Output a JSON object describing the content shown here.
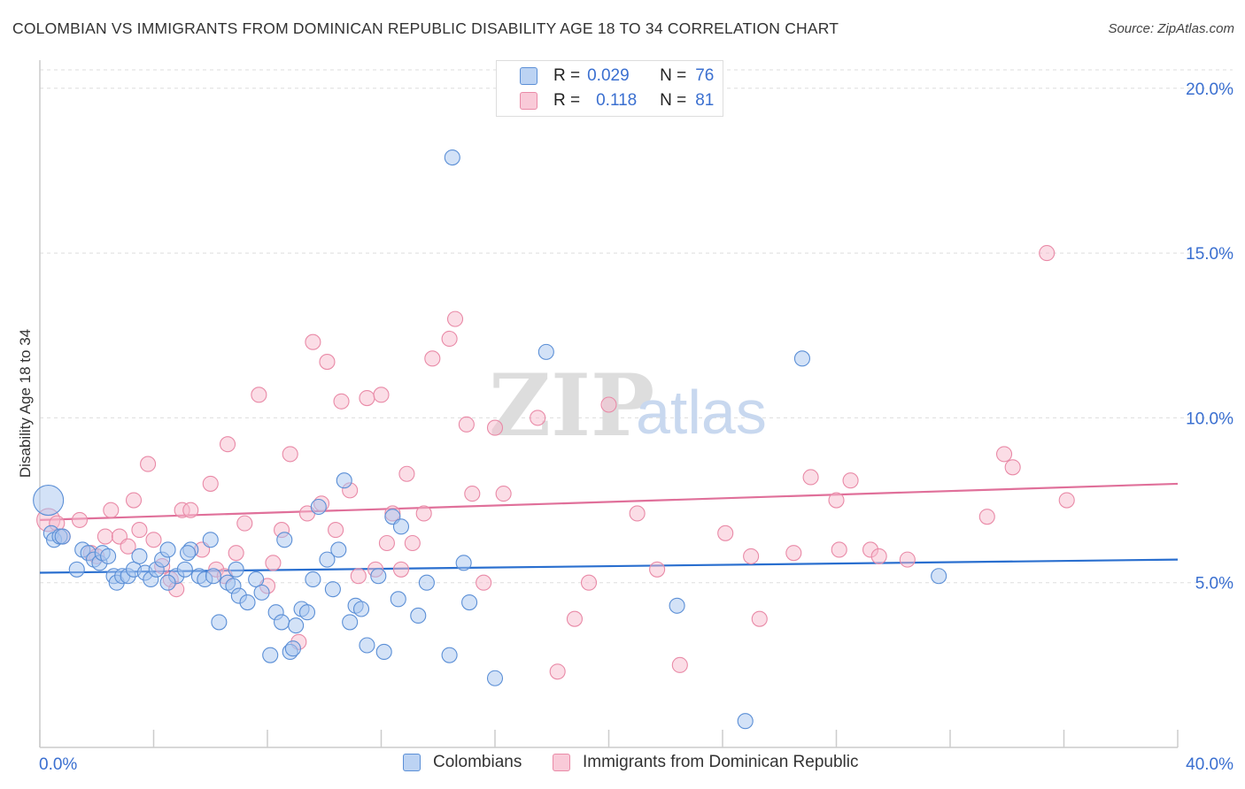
{
  "header": {
    "title": "COLOMBIAN VS IMMIGRANTS FROM DOMINICAN REPUBLIC DISABILITY AGE 18 TO 34 CORRELATION CHART",
    "source": "Source: ZipAtlas.com"
  },
  "watermark": {
    "zip": "ZIP",
    "atlas": "atlas"
  },
  "legend_top": {
    "rows": [
      {
        "r_label": "R =",
        "r_value": "0.029",
        "n_label": "N =",
        "n_value": "76"
      },
      {
        "r_label": "R =",
        "r_value": "0.118",
        "n_label": "N =",
        "n_value": "81"
      }
    ]
  },
  "legend_bottom": {
    "series1": "Colombians",
    "series2": "Immigrants from Dominican Republic"
  },
  "colors": {
    "blue_fill": "#a8c6f0",
    "blue_stroke": "#5b8fd6",
    "blue_line": "#2a6fcf",
    "pink_fill": "#f7bccd",
    "pink_stroke": "#e98aa7",
    "pink_line": "#e0709a",
    "tick_label": "#3a6fd0",
    "grid": "#dddddd",
    "axis": "#cccccc"
  },
  "chart_data": {
    "type": "scatter",
    "title": "COLOMBIAN VS IMMIGRANTS FROM DOMINICAN REPUBLIC DISABILITY AGE 18 TO 34 CORRELATION CHART",
    "xlabel": "",
    "ylabel": "Disability Age 18 to 34",
    "xlim": [
      0,
      40
    ],
    "ylim": [
      0,
      20.8
    ],
    "x_tick_labels": [
      "0.0%",
      "40.0%"
    ],
    "y_ticks": [
      5,
      10,
      15,
      20
    ],
    "y_tick_labels": [
      "5.0%",
      "10.0%",
      "15.0%",
      "20.0%"
    ],
    "grid": "horizontal dashed",
    "legend_position": "top-center",
    "series": [
      {
        "name": "Colombians",
        "r": 0.029,
        "n": 76,
        "trend": {
          "x": [
            0,
            40
          ],
          "y": [
            5.3,
            5.7
          ]
        },
        "points": [
          [
            0.3,
            7.5,
            "L"
          ],
          [
            0.4,
            6.5
          ],
          [
            0.5,
            6.3
          ],
          [
            0.7,
            6.4
          ],
          [
            0.8,
            6.4
          ],
          [
            1.3,
            5.4
          ],
          [
            1.5,
            6.0
          ],
          [
            1.7,
            5.9
          ],
          [
            1.9,
            5.7
          ],
          [
            2.1,
            5.6
          ],
          [
            2.2,
            5.9
          ],
          [
            2.6,
            5.2
          ],
          [
            2.7,
            5.0
          ],
          [
            2.9,
            5.2
          ],
          [
            3.1,
            5.2
          ],
          [
            3.3,
            5.4
          ],
          [
            3.5,
            5.8
          ],
          [
            3.7,
            5.3
          ],
          [
            3.9,
            5.1
          ],
          [
            4.1,
            5.4
          ],
          [
            4.3,
            5.7
          ],
          [
            4.5,
            6.0
          ],
          [
            4.8,
            5.2
          ],
          [
            5.1,
            5.4
          ],
          [
            5.3,
            6.0
          ],
          [
            5.6,
            5.2
          ],
          [
            5.8,
            5.1
          ],
          [
            6.0,
            6.3
          ],
          [
            6.1,
            5.2
          ],
          [
            6.3,
            3.8
          ],
          [
            6.6,
            5.0
          ],
          [
            6.8,
            4.9
          ],
          [
            7.0,
            4.6
          ],
          [
            7.3,
            4.4
          ],
          [
            7.6,
            5.1
          ],
          [
            7.8,
            4.7
          ],
          [
            8.1,
            2.8
          ],
          [
            8.3,
            4.1
          ],
          [
            8.5,
            3.8
          ],
          [
            8.6,
            6.3
          ],
          [
            8.8,
            2.9
          ],
          [
            9.0,
            3.7
          ],
          [
            9.2,
            4.2
          ],
          [
            9.4,
            4.1
          ],
          [
            9.6,
            5.1
          ],
          [
            9.8,
            7.3
          ],
          [
            10.1,
            5.7
          ],
          [
            10.3,
            4.8
          ],
          [
            10.5,
            6.0
          ],
          [
            10.7,
            8.1
          ],
          [
            10.9,
            3.8
          ],
          [
            11.1,
            4.3
          ],
          [
            11.3,
            4.2
          ],
          [
            11.5,
            3.1
          ],
          [
            11.9,
            5.2
          ],
          [
            12.1,
            2.9
          ],
          [
            12.4,
            7.0
          ],
          [
            12.6,
            4.5
          ],
          [
            12.7,
            6.7
          ],
          [
            13.3,
            4.0
          ],
          [
            13.6,
            5.0
          ],
          [
            14.4,
            2.8
          ],
          [
            14.9,
            5.6
          ],
          [
            15.1,
            4.4
          ],
          [
            16.0,
            2.1
          ],
          [
            17.8,
            12.0
          ],
          [
            14.5,
            17.9
          ],
          [
            22.4,
            4.3
          ],
          [
            24.8,
            0.8
          ],
          [
            26.8,
            11.8
          ],
          [
            31.6,
            5.2
          ],
          [
            4.5,
            5.0
          ],
          [
            6.9,
            5.4
          ],
          [
            5.2,
            5.9
          ],
          [
            8.9,
            3.0
          ],
          [
            2.4,
            5.8
          ]
        ]
      },
      {
        "name": "Immigrants from Dominican Republic",
        "r": 0.118,
        "n": 81,
        "trend": {
          "x": [
            0,
            40
          ],
          "y": [
            6.9,
            8.0
          ]
        },
        "points": [
          [
            0.3,
            6.9,
            "M"
          ],
          [
            0.6,
            6.8
          ],
          [
            0.8,
            6.4
          ],
          [
            1.4,
            6.9
          ],
          [
            1.8,
            5.9
          ],
          [
            2.0,
            5.8
          ],
          [
            2.3,
            6.4
          ],
          [
            2.5,
            7.2
          ],
          [
            2.8,
            6.4
          ],
          [
            3.1,
            6.1
          ],
          [
            3.3,
            7.5
          ],
          [
            3.5,
            6.6
          ],
          [
            3.8,
            8.6
          ],
          [
            4.0,
            6.3
          ],
          [
            4.3,
            5.5
          ],
          [
            4.6,
            5.1
          ],
          [
            4.8,
            4.8
          ],
          [
            5.0,
            7.2
          ],
          [
            5.3,
            7.2
          ],
          [
            5.7,
            6.0
          ],
          [
            6.0,
            8.0
          ],
          [
            6.2,
            5.4
          ],
          [
            6.5,
            5.2
          ],
          [
            6.6,
            9.2
          ],
          [
            6.9,
            5.9
          ],
          [
            7.2,
            6.8
          ],
          [
            7.7,
            10.7
          ],
          [
            8.0,
            4.9
          ],
          [
            8.2,
            5.6
          ],
          [
            8.5,
            6.6
          ],
          [
            8.8,
            8.9
          ],
          [
            9.1,
            3.2
          ],
          [
            9.4,
            7.1
          ],
          [
            9.6,
            12.3
          ],
          [
            9.9,
            7.4
          ],
          [
            10.1,
            11.7
          ],
          [
            10.4,
            6.6
          ],
          [
            10.6,
            10.5
          ],
          [
            10.9,
            7.8
          ],
          [
            11.2,
            5.2
          ],
          [
            11.5,
            10.6
          ],
          [
            11.8,
            5.4
          ],
          [
            12.0,
            10.7
          ],
          [
            12.2,
            6.2
          ],
          [
            12.4,
            7.1
          ],
          [
            12.7,
            5.4
          ],
          [
            12.9,
            8.3
          ],
          [
            13.1,
            6.2
          ],
          [
            13.5,
            7.1
          ],
          [
            13.8,
            11.8
          ],
          [
            14.4,
            12.4
          ],
          [
            14.6,
            13.0
          ],
          [
            15.0,
            9.8
          ],
          [
            15.2,
            7.7
          ],
          [
            15.6,
            5.0
          ],
          [
            16.0,
            9.7
          ],
          [
            16.3,
            7.7
          ],
          [
            17.5,
            10.0
          ],
          [
            18.2,
            2.3
          ],
          [
            18.8,
            3.9
          ],
          [
            19.3,
            5.0
          ],
          [
            20.0,
            10.4
          ],
          [
            21.0,
            7.1
          ],
          [
            21.7,
            5.4
          ],
          [
            22.5,
            2.5
          ],
          [
            24.1,
            6.5
          ],
          [
            25.3,
            3.9
          ],
          [
            26.5,
            5.9
          ],
          [
            27.1,
            8.2
          ],
          [
            28.0,
            7.5
          ],
          [
            28.5,
            8.1
          ],
          [
            29.2,
            6.0
          ],
          [
            29.5,
            5.8
          ],
          [
            30.5,
            5.7
          ],
          [
            33.3,
            7.0
          ],
          [
            33.9,
            8.9
          ],
          [
            34.2,
            8.5
          ],
          [
            35.4,
            15.0
          ],
          [
            36.1,
            7.5
          ],
          [
            28.1,
            6.0
          ],
          [
            25.0,
            5.8
          ]
        ]
      }
    ]
  }
}
